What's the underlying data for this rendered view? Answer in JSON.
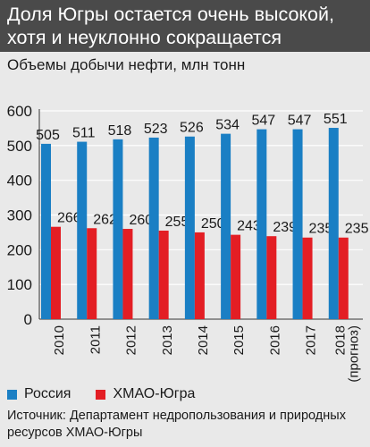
{
  "header": {
    "line1": "Доля Югры остается очень высокой,",
    "line2": "хотя и неуклонно сокращается"
  },
  "subtitle": "Объемы добычи нефти, млн тонн",
  "chart_data": {
    "type": "bar",
    "categories": [
      "2010",
      "2011",
      "2012",
      "2013",
      "2014",
      "2015",
      "2016",
      "2017",
      "2018\n(прогноз)"
    ],
    "series": [
      {
        "name": "Россия",
        "color": "#1a7fc4",
        "values": [
          505,
          511,
          518,
          523,
          526,
          534,
          547,
          547,
          551
        ]
      },
      {
        "name": "ХМАО-Югра",
        "color": "#e31e24",
        "values": [
          266,
          262,
          260,
          255,
          250,
          243,
          239,
          235,
          235
        ]
      }
    ],
    "yticks": [
      0,
      100,
      200,
      300,
      400,
      500,
      600
    ],
    "ylim": [
      0,
      600
    ],
    "grid": true,
    "legend": "bottom-left"
  },
  "source": "Источник: Департамент недропользования и природных ресурсов ХМАО-Югры"
}
